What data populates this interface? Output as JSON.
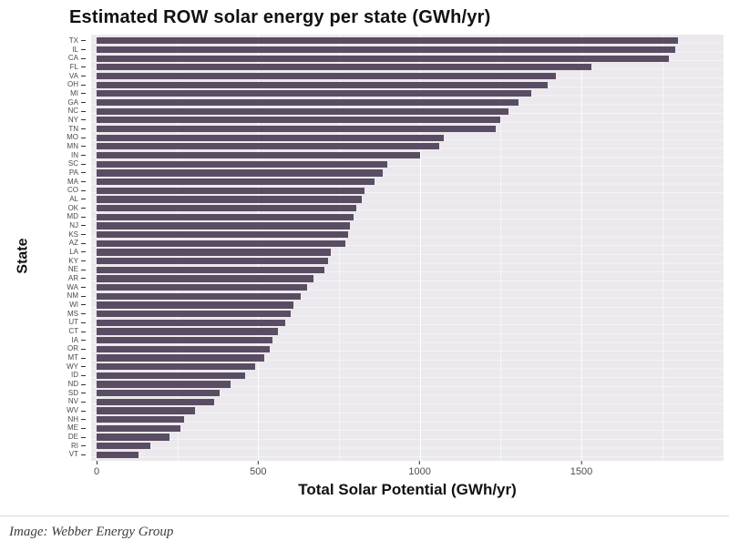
{
  "title": "Estimated ROW solar energy per state (GWh/yr)",
  "caption": "Image: Webber Energy Group",
  "chart_data": {
    "type": "bar",
    "orientation": "horizontal",
    "title": "Estimated ROW solar energy per state (GWh/yr)",
    "xlabel": "Total Solar Potential (GWh/yr)",
    "ylabel": "State",
    "xlim": [
      0,
      1940
    ],
    "xticks": [
      0,
      500,
      1000,
      1500
    ],
    "minor_gridlines": [
      250,
      750,
      1250,
      1750
    ],
    "grid": "on",
    "legend": "none",
    "bar_color": "#5a4d63",
    "panel_color": "#ebe9ed",
    "categories": [
      "TX",
      "IL",
      "CA",
      "FL",
      "VA",
      "OH",
      "MI",
      "GA",
      "NC",
      "NY",
      "TN",
      "MO",
      "MN",
      "IN",
      "SC",
      "PA",
      "MA",
      "CO",
      "AL",
      "OK",
      "MD",
      "NJ",
      "KS",
      "AZ",
      "LA",
      "KY",
      "NE",
      "AR",
      "WA",
      "NM",
      "WI",
      "MS",
      "UT",
      "CT",
      "IA",
      "OR",
      "MT",
      "WY",
      "ID",
      "ND",
      "SD",
      "NV",
      "WV",
      "NH",
      "ME",
      "DE",
      "RI",
      "VT"
    ],
    "values": [
      1800,
      1790,
      1770,
      1530,
      1420,
      1395,
      1345,
      1305,
      1275,
      1250,
      1235,
      1075,
      1060,
      1000,
      900,
      885,
      860,
      830,
      820,
      805,
      795,
      785,
      778,
      770,
      725,
      715,
      705,
      670,
      650,
      632,
      610,
      600,
      585,
      560,
      545,
      535,
      520,
      490,
      460,
      415,
      380,
      365,
      305,
      272,
      260,
      225,
      165,
      130
    ]
  }
}
